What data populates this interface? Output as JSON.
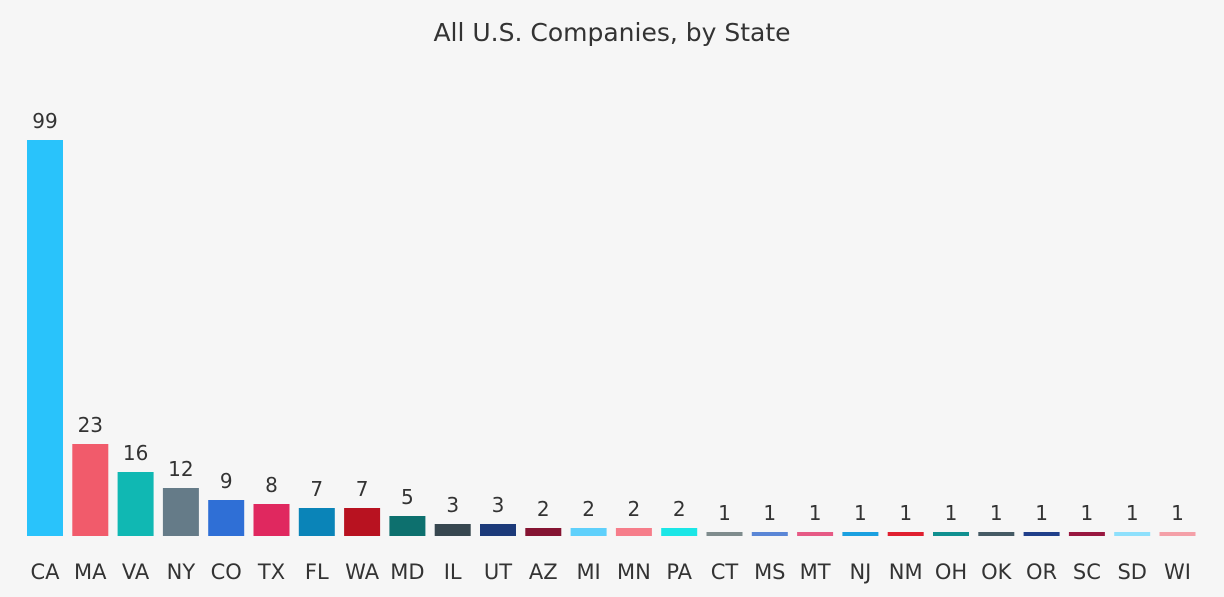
{
  "chart_data": {
    "type": "bar",
    "title": "All U.S. Companies, by State",
    "xlabel": "",
    "ylabel": "",
    "ylim": [
      0,
      99
    ],
    "grid": false,
    "legend": "none",
    "categories": [
      "CA",
      "MA",
      "VA",
      "NY",
      "CO",
      "TX",
      "FL",
      "WA",
      "MD",
      "IL",
      "UT",
      "AZ",
      "MI",
      "MN",
      "PA",
      "CT",
      "MS",
      "MT",
      "NJ",
      "NM",
      "OH",
      "OK",
      "OR",
      "SC",
      "SD",
      "WI"
    ],
    "values": [
      99,
      23,
      16,
      12,
      9,
      8,
      7,
      7,
      5,
      3,
      3,
      2,
      2,
      2,
      2,
      1,
      1,
      1,
      1,
      1,
      1,
      1,
      1,
      1,
      1,
      1
    ],
    "colors": [
      "#29c3fb",
      "#f15b6b",
      "#10b8b3",
      "#657b88",
      "#2f6fd6",
      "#e0285f",
      "#0a84b8",
      "#b81220",
      "#0d706e",
      "#37474f",
      "#1c3a7a",
      "#851432",
      "#5fd0fb",
      "#f67d8a",
      "#1be6e6",
      "#7f8c8d",
      "#5a86d6",
      "#e65a85",
      "#1aa0e0",
      "#e02030",
      "#109090",
      "#455a64",
      "#203f8a",
      "#991840",
      "#8ee0fc",
      "#f4a0a8"
    ]
  }
}
